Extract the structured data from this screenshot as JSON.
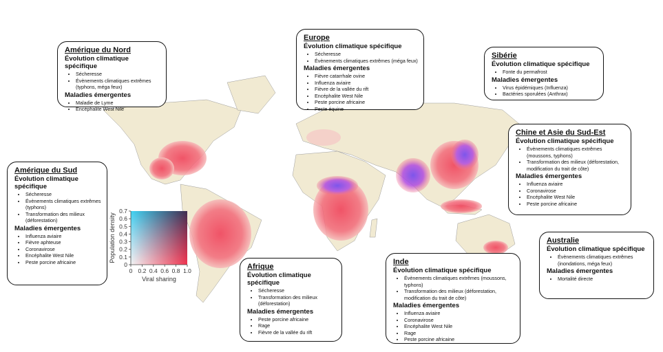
{
  "regions": [
    {
      "title": "Amérique du Nord",
      "sections": [
        {
          "heading": "Évolution climatique spécifique",
          "items": [
            "Sécheresse",
            "Évènements climatiques extrêmes (typhons, méga feux)"
          ]
        },
        {
          "heading": "Maladies émergentes",
          "items": [
            "Maladie de Lyme",
            "Encéphalite West Nile"
          ]
        }
      ]
    },
    {
      "title": "Europe",
      "sections": [
        {
          "heading": "Évolution climatique spécifique",
          "items": [
            "Sécheresse",
            "Évènements climatiques extrêmes (méga feux)"
          ]
        },
        {
          "heading": "Maladies émergentes",
          "items": [
            "Fièvre catarrhale ovine",
            "Influenza aviaire",
            "Fièvre de la vallée du rift",
            "Encéphalite West Nile",
            "Peste porcine africaine",
            "Peste équine"
          ]
        }
      ]
    },
    {
      "title": "Sibérie",
      "sections": [
        {
          "heading": "Évolution climatique spécifique",
          "items": [
            "Fonte du permafrost"
          ]
        },
        {
          "heading": "Maladies émergentes",
          "items": [
            "Virus épidémiques (Influenza)",
            "Bactéries sporulées (Anthrax)"
          ]
        }
      ]
    },
    {
      "title": "Chine et Asie du Sud-Est",
      "sections": [
        {
          "heading": "Évolution climatique spécifique",
          "items": [
            "Évènements climatiques extrêmes (moussons, typhons)",
            "Transformation des milieux (déforestation, modification du trait de côte)"
          ]
        },
        {
          "heading": "Maladies émergentes",
          "items": [
            "Influenza aviaire",
            "Coronavirose",
            "Encéphalite West Nile",
            "Peste porcine africaine"
          ]
        }
      ]
    },
    {
      "title": "Amérique du Sud",
      "sections": [
        {
          "heading": "Évolution climatique spécifique",
          "items": [
            "Sécheresse",
            "Évènements climatiques extrêmes (typhons)",
            "Transformation des milieux (déforestation)"
          ]
        },
        {
          "heading": "Maladies émergentes",
          "items": [
            "Influenza aviaire",
            "Fièvre aphteuse",
            "Coronavirose",
            "Encéphalite West Nile",
            "Peste porcine africaine"
          ]
        }
      ]
    },
    {
      "title": "Afrique",
      "sections": [
        {
          "heading": "Évolution climatique spécifique",
          "items": [
            "Sécheresse",
            "Transformation des milieux (déforestation)"
          ]
        },
        {
          "heading": "Maladies émergentes",
          "items": [
            "Peste porcine africaine",
            "Rage",
            "Fièvre de la vallée du rift"
          ]
        }
      ]
    },
    {
      "title": "Inde",
      "sections": [
        {
          "heading": "Évolution climatique spécifique",
          "items": [
            "Évènements climatiques extrêmes (moussons, typhons)",
            "Transformation des milieux (déforestation, modification du trait de côte)"
          ]
        },
        {
          "heading": "Maladies émergentes",
          "items": [
            "Influenza aviaire",
            "Coronavirose",
            "Encéphalite West Nile",
            "Rage",
            "Peste porcine africaine"
          ]
        }
      ]
    },
    {
      "title": "Australie",
      "sections": [
        {
          "heading": "Évolution climatique spécifique",
          "items": [
            "Évènements climatiques extrêmes (inondations, méga feux)"
          ]
        },
        {
          "heading": "Maladies émergentes",
          "items": [
            "Mortalité directe"
          ]
        }
      ]
    }
  ],
  "legend": {
    "xlabel": "Viral sharing",
    "ylabel": "Population density",
    "xlim": [
      0,
      1
    ],
    "ylim": [
      0,
      0.7
    ],
    "xticks": [
      0,
      0.2,
      0.4,
      0.6,
      0.8,
      {
        "value": 1,
        "label": "1.0"
      }
    ],
    "yticks": [
      0,
      0.1,
      0.2,
      0.3,
      0.4,
      0.5,
      0.6,
      0.7
    ]
  }
}
